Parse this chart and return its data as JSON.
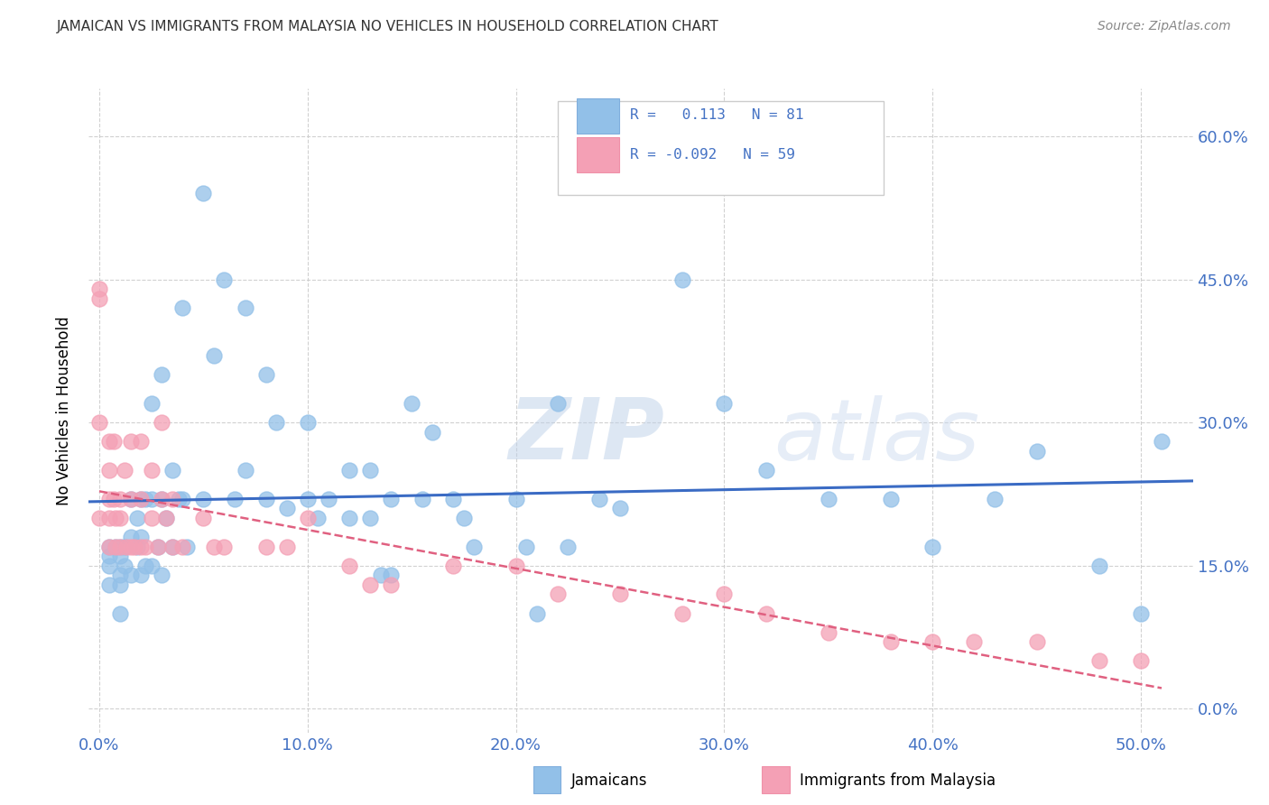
{
  "title": "JAMAICAN VS IMMIGRANTS FROM MALAYSIA NO VEHICLES IN HOUSEHOLD CORRELATION CHART",
  "source": "Source: ZipAtlas.com",
  "xlabel_ticks": [
    "0.0%",
    "10.0%",
    "20.0%",
    "30.0%",
    "40.0%",
    "50.0%"
  ],
  "xlabel_values": [
    0.0,
    0.1,
    0.2,
    0.3,
    0.4,
    0.5
  ],
  "ylabel_ticks": [
    "0.0%",
    "15.0%",
    "30.0%",
    "45.0%",
    "60.0%"
  ],
  "ylabel_values": [
    0.0,
    0.15,
    0.3,
    0.45,
    0.6
  ],
  "xlim": [
    -0.005,
    0.525
  ],
  "ylim": [
    -0.025,
    0.65
  ],
  "legend_label1": "Jamaicans",
  "legend_label2": "Immigrants from Malaysia",
  "color_blue": "#92C0E8",
  "color_pink": "#F4A0B5",
  "color_blue_line": "#3A6BC4",
  "color_pink_line": "#E06080",
  "watermark_zip": "ZIP",
  "watermark_atlas": "atlas",
  "jamaicans_x": [
    0.005,
    0.005,
    0.005,
    0.005,
    0.008,
    0.01,
    0.01,
    0.01,
    0.01,
    0.01,
    0.012,
    0.012,
    0.015,
    0.015,
    0.015,
    0.018,
    0.018,
    0.02,
    0.02,
    0.02,
    0.022,
    0.022,
    0.025,
    0.025,
    0.025,
    0.028,
    0.03,
    0.03,
    0.03,
    0.032,
    0.035,
    0.035,
    0.038,
    0.04,
    0.04,
    0.042,
    0.05,
    0.05,
    0.055,
    0.06,
    0.065,
    0.07,
    0.07,
    0.08,
    0.08,
    0.085,
    0.09,
    0.1,
    0.1,
    0.105,
    0.11,
    0.12,
    0.12,
    0.13,
    0.13,
    0.135,
    0.14,
    0.14,
    0.15,
    0.155,
    0.16,
    0.17,
    0.175,
    0.18,
    0.2,
    0.205,
    0.21,
    0.22,
    0.225,
    0.24,
    0.25,
    0.28,
    0.3,
    0.32,
    0.35,
    0.38,
    0.4,
    0.43,
    0.45,
    0.48,
    0.5,
    0.51
  ],
  "jamaicans_y": [
    0.17,
    0.16,
    0.15,
    0.13,
    0.17,
    0.17,
    0.16,
    0.14,
    0.13,
    0.1,
    0.17,
    0.15,
    0.22,
    0.18,
    0.14,
    0.2,
    0.17,
    0.22,
    0.18,
    0.14,
    0.22,
    0.15,
    0.32,
    0.22,
    0.15,
    0.17,
    0.35,
    0.22,
    0.14,
    0.2,
    0.25,
    0.17,
    0.22,
    0.42,
    0.22,
    0.17,
    0.54,
    0.22,
    0.37,
    0.45,
    0.22,
    0.42,
    0.25,
    0.35,
    0.22,
    0.3,
    0.21,
    0.3,
    0.22,
    0.2,
    0.22,
    0.25,
    0.2,
    0.25,
    0.2,
    0.14,
    0.22,
    0.14,
    0.32,
    0.22,
    0.29,
    0.22,
    0.2,
    0.17,
    0.22,
    0.17,
    0.1,
    0.32,
    0.17,
    0.22,
    0.21,
    0.45,
    0.32,
    0.25,
    0.22,
    0.22,
    0.17,
    0.22,
    0.27,
    0.15,
    0.1,
    0.28
  ],
  "malaysia_x": [
    0.0,
    0.0,
    0.0,
    0.0,
    0.005,
    0.005,
    0.005,
    0.005,
    0.005,
    0.007,
    0.007,
    0.008,
    0.008,
    0.01,
    0.01,
    0.01,
    0.012,
    0.013,
    0.015,
    0.015,
    0.015,
    0.017,
    0.02,
    0.02,
    0.02,
    0.022,
    0.025,
    0.025,
    0.028,
    0.03,
    0.03,
    0.032,
    0.035,
    0.035,
    0.04,
    0.05,
    0.055,
    0.06,
    0.08,
    0.09,
    0.1,
    0.12,
    0.13,
    0.14,
    0.17,
    0.2,
    0.22,
    0.25,
    0.28,
    0.3,
    0.32,
    0.35,
    0.38,
    0.4,
    0.42,
    0.45,
    0.48,
    0.5
  ],
  "malaysia_y": [
    0.43,
    0.44,
    0.3,
    0.2,
    0.28,
    0.25,
    0.22,
    0.2,
    0.17,
    0.28,
    0.22,
    0.2,
    0.17,
    0.22,
    0.2,
    0.17,
    0.25,
    0.17,
    0.28,
    0.22,
    0.17,
    0.17,
    0.28,
    0.22,
    0.17,
    0.17,
    0.25,
    0.2,
    0.17,
    0.3,
    0.22,
    0.2,
    0.22,
    0.17,
    0.17,
    0.2,
    0.17,
    0.17,
    0.17,
    0.17,
    0.2,
    0.15,
    0.13,
    0.13,
    0.15,
    0.15,
    0.12,
    0.12,
    0.1,
    0.12,
    0.1,
    0.08,
    0.07,
    0.07,
    0.07,
    0.07,
    0.05,
    0.05
  ]
}
